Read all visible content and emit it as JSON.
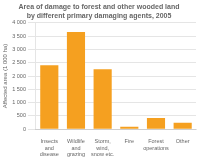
{
  "chart_data": {
    "type": "bar",
    "title": "Area of damage to forest and other wooded land\nby different primary damaging agents, 2005",
    "ylabel": "Affected area (1 000 ha)",
    "categories": [
      "Insects\nand\ndisease",
      "Wildlife\nand\ngrazing",
      "Storm,\nwind,\nsnow etc.",
      "Fire",
      "Forest\noperations",
      "Other"
    ],
    "values": [
      2400,
      3650,
      2250,
      90,
      420,
      240
    ],
    "color": "#F5A020",
    "ylim": [
      0,
      4000
    ],
    "yticks": [
      0,
      500,
      {
        "value": 1000,
        "label": "1 000"
      },
      {
        "value": 1500,
        "label": "1 500"
      },
      {
        "value": 2000,
        "label": "2 000"
      },
      {
        "value": 2500,
        "label": "2 500"
      },
      {
        "value": 3000,
        "label": "3 000"
      },
      {
        "value": 3500,
        "label": "3 500"
      },
      {
        "value": 4000,
        "label": "4 000"
      }
    ],
    "grid": true
  }
}
